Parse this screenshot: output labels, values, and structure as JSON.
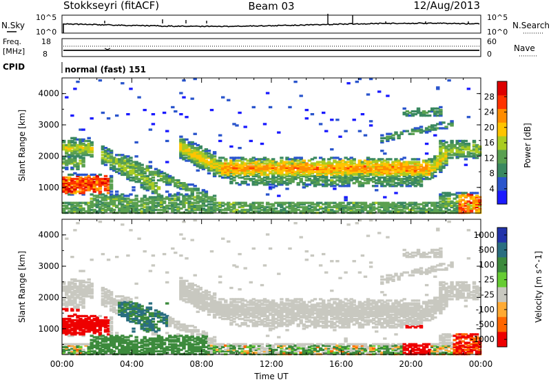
{
  "header": {
    "station": "Stokkseyri (fitACF)",
    "beam": "Beam 03",
    "date": "12/Aug/2013"
  },
  "noise_panel": {
    "left_label": "N.Sky",
    "right_label": "N.Search",
    "left_ticks": [
      "10^5",
      "10^0"
    ],
    "right_ticks": [
      "10^5",
      "10^0"
    ]
  },
  "freq_panel": {
    "left_label_1": "Freq.",
    "left_label_2": "[MHz]",
    "right_label": "Nave",
    "left_ticks": [
      "18",
      "8"
    ],
    "right_ticks": [
      "60",
      "0"
    ]
  },
  "cpid_panel": {
    "label": "CPID",
    "program": "normal (fast) 151"
  },
  "chart_data": [
    {
      "type": "heatmap",
      "quantity": "Power",
      "ylabel": "Slant Range [km]",
      "yticks": [
        1000,
        2000,
        3000,
        4000
      ],
      "ylim": [
        180,
        4500
      ],
      "colorbar_label": "Power [dB]",
      "colorbar_ticks": [
        4,
        8,
        12,
        16,
        20,
        24,
        28
      ],
      "colorbar_range": [
        0,
        32
      ],
      "colorscale": [
        "#1a1aff",
        "#2a55cc",
        "#3a8860",
        "#5aa050",
        "#aacc22",
        "#ffc400",
        "#ff8c00",
        "#ff3300",
        "#dd0000"
      ]
    },
    {
      "type": "heatmap",
      "quantity": "Velocity",
      "ylabel": "Slant Range [km]",
      "yticks": [
        1000,
        2000,
        3000,
        4000
      ],
      "ylim": [
        180,
        4500
      ],
      "xlabel": "Time UT",
      "xticks": [
        "00:00",
        "04:00",
        "08:00",
        "12:00",
        "16:00",
        "20:00",
        "00:00"
      ],
      "colorbar_label": "Velocity [m s^-1]",
      "colorbar_ticks": [
        "1000",
        "500",
        "100",
        "25",
        "-25",
        "-100",
        "-500",
        "-1000"
      ],
      "colorscale": [
        "#2233aa",
        "#2a6e80",
        "#3c8a3c",
        "#66cc33",
        "#c8c8c0",
        "#ffaa33",
        "#ff6600",
        "#ee0000"
      ]
    }
  ]
}
